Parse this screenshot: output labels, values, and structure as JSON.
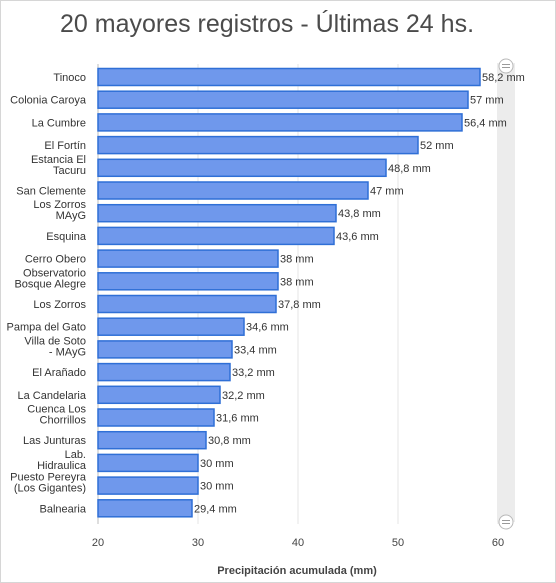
{
  "chart_data": {
    "type": "bar",
    "orientation": "horizontal",
    "title": "20 mayores registros - Últimas 24 hs.",
    "xlabel": "Precipitación acumulada (mm)",
    "ylabel": "",
    "xlim": [
      20,
      60
    ],
    "xticks": [
      20,
      30,
      40,
      50,
      60
    ],
    "grid": true,
    "bar_color": "#6f98ec",
    "bar_border": "#2f6fd6",
    "categories": [
      "Tinoco",
      "Colonia Caroya",
      "La Cumbre",
      "El Fortín",
      "Estancia El Tacuru",
      "San Clemente",
      "Los Zorros MAyG",
      "Esquina",
      "Cerro Obero",
      "Observatorio Bosque Alegre",
      "Los Zorros",
      "Pampa del Gato",
      "Villa de Soto - MAyG",
      "El Arañado",
      "La Candelaria",
      "Cuenca Los Chorrillos",
      "Las Junturas",
      "Lab. Hidraulica",
      "Puesto Pereyra (Los Gigantes)",
      "Balnearia"
    ],
    "values": [
      58.2,
      57,
      56.4,
      52,
      48.8,
      47,
      43.8,
      43.6,
      38,
      38,
      37.8,
      34.6,
      33.4,
      33.2,
      32.2,
      31.6,
      30.8,
      30,
      30,
      29.4
    ],
    "value_labels": [
      "58,2 mm",
      "57 mm",
      "56,4 mm",
      "52 mm",
      "48,8 mm",
      "47 mm",
      "43,8 mm",
      "43,6 mm",
      "38 mm",
      "38 mm",
      "37,8 mm",
      "34,6 mm",
      "33,4 mm",
      "33,2 mm",
      "32,2 mm",
      "31,6 mm",
      "30,8 mm",
      "30 mm",
      "30 mm",
      "29,4 mm"
    ]
  }
}
